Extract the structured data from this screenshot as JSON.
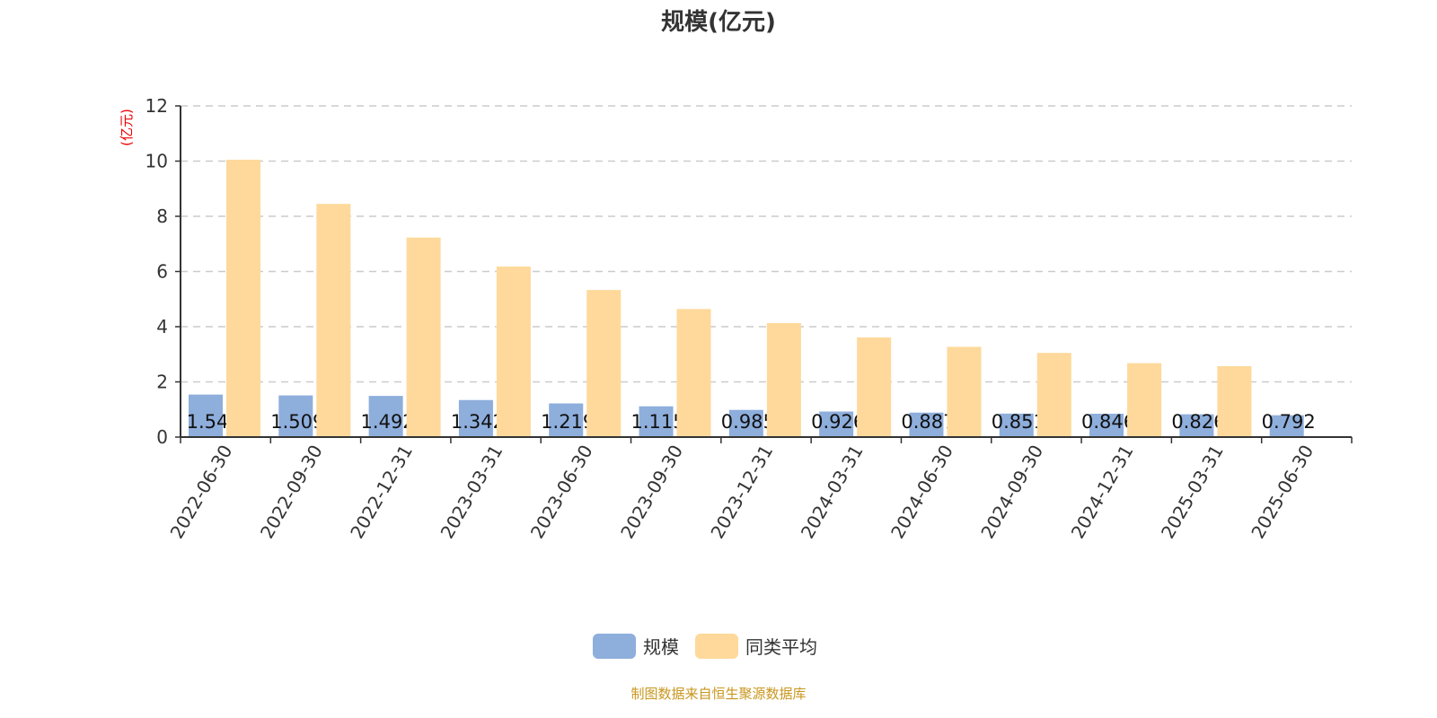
{
  "chart_data": {
    "type": "bar",
    "title": "规模(亿元)",
    "ylabel": "(亿元)",
    "xlabel": "",
    "ylim": [
      0,
      12
    ],
    "yticks": [
      0,
      2,
      4,
      6,
      8,
      10,
      12
    ],
    "grid": true,
    "legend_position": "bottom",
    "categories": [
      "2022-06-30",
      "2022-09-30",
      "2022-12-31",
      "2023-03-31",
      "2023-06-30",
      "2023-09-30",
      "2023-12-31",
      "2024-03-31",
      "2024-06-30",
      "2024-09-30",
      "2024-12-31",
      "2025-03-31",
      "2025-06-30"
    ],
    "series": [
      {
        "name": "规模",
        "color": "#8eaedc",
        "values": [
          1.54,
          1.509,
          1.492,
          1.342,
          1.219,
          1.115,
          0.985,
          0.926,
          0.887,
          0.851,
          0.846,
          0.826,
          0.792
        ],
        "labels": [
          "1.54",
          "1.509",
          "1.492",
          "1.342",
          "1.219",
          "1.115",
          "0.985",
          "0.926",
          "0.887",
          "0.851",
          "0.846",
          "0.826",
          "0.792"
        ]
      },
      {
        "name": "同类平均",
        "color": "#fed99b",
        "values": [
          10.05,
          8.45,
          7.23,
          6.18,
          5.33,
          4.64,
          4.13,
          3.61,
          3.27,
          3.05,
          2.68,
          2.57,
          null
        ]
      }
    ]
  },
  "source": "制图数据来自恒生聚源数据库"
}
